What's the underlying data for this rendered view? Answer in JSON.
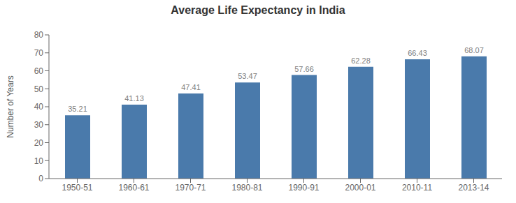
{
  "chart_data": {
    "type": "bar",
    "title": "Average Life Expectancy in India",
    "categories": [
      "1950-51",
      "1960-61",
      "1970-71",
      "1980-81",
      "1990-91",
      "2000-01",
      "2010-11",
      "2013-14"
    ],
    "values": [
      35.21,
      41.13,
      47.41,
      53.47,
      57.66,
      62.28,
      66.43,
      68.07
    ],
    "color": "#4a7aab",
    "ylabel": "Number of Years",
    "ylim": [
      0,
      80
    ],
    "yticks": [
      0,
      10,
      20,
      30,
      40,
      50,
      60,
      70,
      80
    ],
    "data_labels": true,
    "grid": false
  }
}
